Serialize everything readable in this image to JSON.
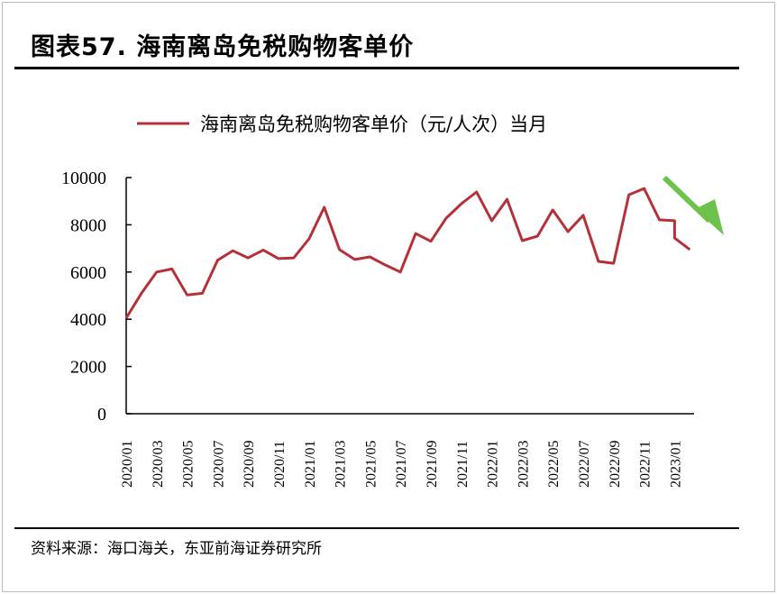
{
  "header": {
    "title": "图表57. 海南离岛免税购物客单价"
  },
  "source": "资料来源：海口海关，东亚前海证券研究所",
  "chart_data": {
    "type": "line",
    "title": "",
    "xlabel": "",
    "ylabel": "",
    "ylim": [
      0,
      10000
    ],
    "yticks": [
      "0",
      "2000",
      "4000",
      "6000",
      "8000",
      "10000"
    ],
    "xticks": [
      "2020/01",
      "2020/03",
      "2020/05",
      "2020/07",
      "2020/09",
      "2020/11",
      "2021/01",
      "2021/03",
      "2021/05",
      "2021/07",
      "2021/09",
      "2021/11",
      "2022/01",
      "2022/03",
      "2022/05",
      "2022/07",
      "2022/09",
      "2022/11",
      "2023/01"
    ],
    "legend_position": "top",
    "grid": false,
    "line_color": "#b5313a",
    "annotation": {
      "type": "down-arrow",
      "color": "#6cc24a"
    },
    "series": [
      {
        "name": "海南离岛免税购物客单价（元/人次）当月",
        "x": [
          "2020/01",
          "2020/02",
          "2020/03",
          "2020/04",
          "2020/05",
          "2020/06",
          "2020/07",
          "2020/08",
          "2020/09",
          "2020/10",
          "2020/11",
          "2020/12",
          "2021/01",
          "2021/02",
          "2021/03",
          "2021/04",
          "2021/05",
          "2021/06",
          "2021/07",
          "2021/08",
          "2021/09",
          "2021/10",
          "2021/11",
          "2021/12",
          "2022/01",
          "2022/02",
          "2022/03",
          "2022/04",
          "2022/05",
          "2022/06",
          "2022/07",
          "2022/08",
          "2022/09",
          "2022/10",
          "2022/11",
          "2022/12",
          "2023/01",
          "2023/01",
          "2023/02"
        ],
        "values": [
          4050,
          5100,
          6000,
          6130,
          5030,
          5100,
          6500,
          6900,
          6600,
          6930,
          6570,
          6600,
          7400,
          8740,
          6950,
          6530,
          6640,
          6300,
          6000,
          7630,
          7300,
          8280,
          8890,
          9390,
          8170,
          9080,
          7330,
          7520,
          8630,
          7710,
          8400,
          6450,
          6370,
          9270,
          9540,
          8210,
          8170,
          7440,
          6950
        ]
      }
    ]
  }
}
